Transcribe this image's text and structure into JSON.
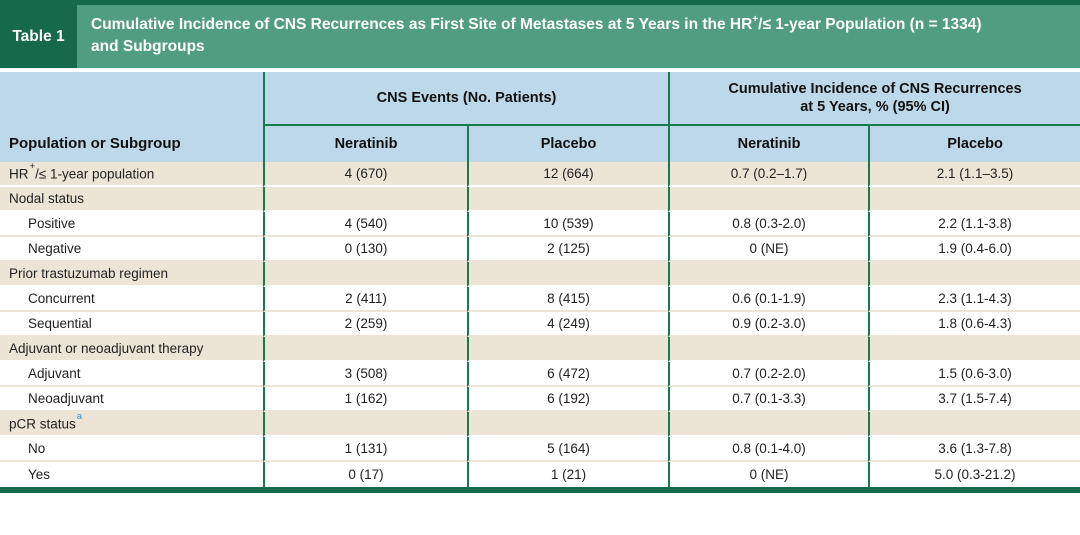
{
  "header": {
    "label": "Table 1",
    "title_pre": "Cumulative Incidence of CNS Recurrences as First Site of Metastases at 5 Years in the HR",
    "title_sup": "+",
    "title_post": "/≤ 1-year Population (n = 1334)",
    "title_line2": "and Subgroups"
  },
  "columns": {
    "population": "Population or Subgroup",
    "group1": "CNS Events (No. Patients)",
    "group2_line1": "Cumulative Incidence of CNS Recurrences",
    "group2_line2": "at 5 Years, % (95% CI)",
    "sub": [
      "Neratinib",
      "Placebo",
      "Neratinib",
      "Placebo"
    ]
  },
  "rows": [
    {
      "label_parts": [
        {
          "t": "HR"
        },
        {
          "sup": "+"
        },
        {
          "t": "/≤ 1-year population"
        }
      ],
      "indent": false,
      "bg": "beige",
      "cells": [
        "4 (670)",
        "12 (664)",
        "0.7 (0.2–1.7)",
        "2.1 (1.1–3.5)"
      ]
    },
    {
      "label_parts": [
        {
          "t": "Nodal status"
        }
      ],
      "indent": false,
      "bg": "beige",
      "cells": [
        "",
        "",
        "",
        ""
      ]
    },
    {
      "label_parts": [
        {
          "t": "Positive"
        }
      ],
      "indent": true,
      "bg": "white",
      "cells": [
        "4 (540)",
        "10 (539)",
        "0.8 (0.3-2.0)",
        "2.2 (1.1-3.8)"
      ]
    },
    {
      "label_parts": [
        {
          "t": "Negative"
        }
      ],
      "indent": true,
      "bg": "white",
      "cells": [
        "0 (130)",
        "2 (125)",
        "0 (NE)",
        "1.9 (0.4-6.0)"
      ]
    },
    {
      "label_parts": [
        {
          "t": "Prior trastuzumab regimen"
        }
      ],
      "indent": false,
      "bg": "beige",
      "cells": [
        "",
        "",
        "",
        ""
      ]
    },
    {
      "label_parts": [
        {
          "t": "Concurrent"
        }
      ],
      "indent": true,
      "bg": "white",
      "cells": [
        "2 (411)",
        "8 (415)",
        "0.6 (0.1-1.9)",
        "2.3 (1.1-4.3)"
      ]
    },
    {
      "label_parts": [
        {
          "t": "Sequential"
        }
      ],
      "indent": true,
      "bg": "white",
      "cells": [
        "2 (259)",
        "4 (249)",
        "0.9 (0.2-3.0)",
        "1.8 (0.6-4.3)"
      ]
    },
    {
      "label_parts": [
        {
          "t": "Adjuvant or neoadjuvant therapy"
        }
      ],
      "indent": false,
      "bg": "beige",
      "cells": [
        "",
        "",
        "",
        ""
      ]
    },
    {
      "label_parts": [
        {
          "t": "Adjuvant"
        }
      ],
      "indent": true,
      "bg": "white",
      "cells": [
        "3 (508)",
        "6 (472)",
        "0.7 (0.2-2.0)",
        "1.5 (0.6-3.0)"
      ]
    },
    {
      "label_parts": [
        {
          "t": "Neoadjuvant"
        }
      ],
      "indent": true,
      "bg": "white",
      "cells": [
        "1 (162)",
        "6 (192)",
        "0.7 (0.1-3.3)",
        "3.7 (1.5-7.4)"
      ]
    },
    {
      "label_parts": [
        {
          "t": "pCR status"
        },
        {
          "sup": "a",
          "blue": true
        }
      ],
      "indent": false,
      "bg": "beige",
      "cells": [
        "",
        "",
        "",
        ""
      ]
    },
    {
      "label_parts": [
        {
          "t": "No"
        }
      ],
      "indent": true,
      "bg": "white",
      "cells": [
        "1 (131)",
        "5 (164)",
        "0.8 (0.1-4.0)",
        "3.6 (1.3-7.8)"
      ]
    },
    {
      "label_parts": [
        {
          "t": "Yes"
        }
      ],
      "indent": true,
      "bg": "white",
      "cells": [
        "0 (17)",
        "1 (21)",
        "0 (NE)",
        "5.0 (0.3-21.2)"
      ]
    }
  ],
  "colors": {
    "dark_green": "#16694a",
    "medium_green": "#519d81",
    "line_green": "#177a4e",
    "header_blue": "#bdd8e9",
    "row_beige": "#ece5d5",
    "footnote_blue": "#3c8cc8"
  }
}
